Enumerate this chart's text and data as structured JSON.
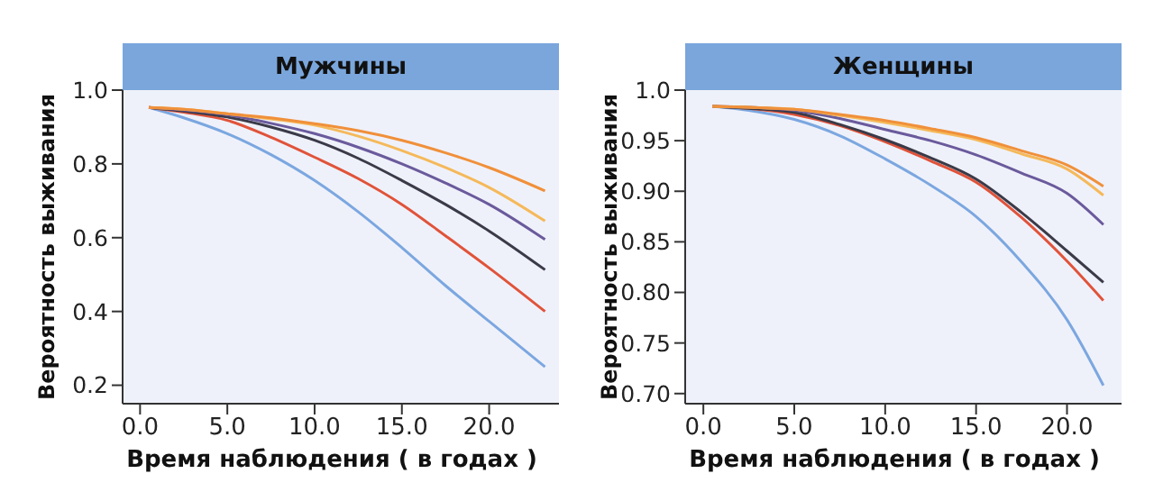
{
  "chart_data": [
    {
      "type": "line",
      "title": "Мужчины",
      "xlabel": "Время наблюдения ( в годах )",
      "ylabel": "Вероятность выживания",
      "x": [
        0.5,
        2.5,
        5,
        7.5,
        10,
        12.5,
        15,
        17.5,
        20,
        23.2
      ],
      "xlim": [
        -1,
        24
      ],
      "xticks": [
        {
          "value": 0,
          "label": "0.0"
        },
        {
          "value": 5,
          "label": "5.0"
        },
        {
          "value": 10,
          "label": "10.0"
        },
        {
          "value": 15,
          "label": "15.0"
        },
        {
          "value": 20,
          "label": "20.0"
        }
      ],
      "ylim": [
        0.15,
        1.0
      ],
      "yticks": [
        {
          "value": 0.2,
          "label": "0.2"
        },
        {
          "value": 0.4,
          "label": "0.4"
        },
        {
          "value": 0.6,
          "label": "0.6"
        },
        {
          "value": 0.8,
          "label": "0.8"
        },
        {
          "value": 1,
          "label": "1.0"
        }
      ],
      "series": [
        {
          "color": "#7ba7e0",
          "values": [
            0.953,
            0.925,
            0.882,
            0.825,
            0.755,
            0.67,
            0.573,
            0.47,
            0.373,
            0.25
          ]
        },
        {
          "color": "#e0533a",
          "values": [
            0.953,
            0.94,
            0.918,
            0.872,
            0.818,
            0.76,
            0.69,
            0.605,
            0.518,
            0.4
          ]
        },
        {
          "color": "#3a3a48",
          "values": [
            0.953,
            0.943,
            0.927,
            0.9,
            0.864,
            0.815,
            0.755,
            0.69,
            0.618,
            0.513
          ]
        },
        {
          "color": "#6a5a9c",
          "values": [
            0.953,
            0.946,
            0.933,
            0.91,
            0.882,
            0.845,
            0.8,
            0.748,
            0.69,
            0.595
          ]
        },
        {
          "color": "#f5b95a",
          "values": [
            0.953,
            0.948,
            0.936,
            0.922,
            0.905,
            0.875,
            0.836,
            0.79,
            0.736,
            0.645
          ]
        },
        {
          "color": "#f0903a",
          "values": [
            0.953,
            0.948,
            0.936,
            0.925,
            0.909,
            0.89,
            0.864,
            0.83,
            0.79,
            0.727
          ]
        }
      ]
    },
    {
      "type": "line",
      "title": "Женщины",
      "xlabel": "Время наблюдения ( в годах )",
      "ylabel": "Вероятность выживания",
      "x": [
        0.5,
        2.5,
        5,
        7.5,
        10,
        12.5,
        15,
        17.5,
        20,
        22
      ],
      "xlim": [
        -1,
        23
      ],
      "xticks": [
        {
          "value": 0,
          "label": "0.0"
        },
        {
          "value": 5,
          "label": "5.0"
        },
        {
          "value": 10,
          "label": "10.0"
        },
        {
          "value": 15,
          "label": "15.0"
        },
        {
          "value": 20,
          "label": "20.0"
        }
      ],
      "ylim": [
        0.69,
        1.0
      ],
      "yticks": [
        {
          "value": 0.7,
          "label": "0.70"
        },
        {
          "value": 0.75,
          "label": "0.75"
        },
        {
          "value": 0.8,
          "label": "0.80"
        },
        {
          "value": 0.85,
          "label": "0.85"
        },
        {
          "value": 0.9,
          "label": "0.90"
        },
        {
          "value": 0.95,
          "label": "0.95"
        },
        {
          "value": 1,
          "label": "1.0"
        }
      ],
      "series": [
        {
          "color": "#7ba7e0",
          "values": [
            0.984,
            0.98,
            0.971,
            0.955,
            0.932,
            0.906,
            0.875,
            0.83,
            0.773,
            0.708
          ]
        },
        {
          "color": "#e0533a",
          "values": [
            0.984,
            0.982,
            0.976,
            0.965,
            0.949,
            0.93,
            0.909,
            0.874,
            0.831,
            0.792
          ]
        },
        {
          "color": "#3a3a48",
          "values": [
            0.984,
            0.982,
            0.978,
            0.966,
            0.951,
            0.933,
            0.912,
            0.879,
            0.841,
            0.81
          ]
        },
        {
          "color": "#6a5a9c",
          "values": [
            0.984,
            0.983,
            0.98,
            0.972,
            0.961,
            0.95,
            0.936,
            0.918,
            0.898,
            0.867
          ]
        },
        {
          "color": "#f5b95a",
          "values": [
            0.984,
            0.983,
            0.981,
            0.975,
            0.968,
            0.96,
            0.951,
            0.937,
            0.922,
            0.896
          ]
        },
        {
          "color": "#f0903a",
          "values": [
            0.984,
            0.983,
            0.981,
            0.976,
            0.97,
            0.962,
            0.953,
            0.94,
            0.926,
            0.905
          ]
        }
      ]
    }
  ]
}
